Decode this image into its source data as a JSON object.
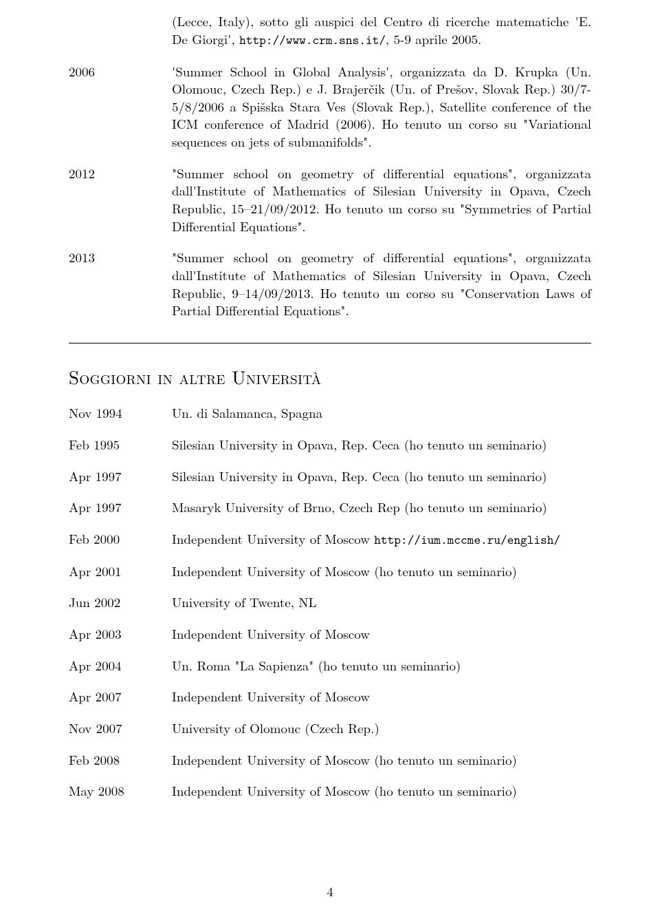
{
  "top": {
    "cont_text": "(Lecce, Italy), sotto gli auspici del Centro di ricerche matematiche 'E. De Giorgi', ",
    "cont_url": "http://www.crm.sns.it/",
    "cont_tail": ", 5-9 aprile 2005."
  },
  "schools": [
    {
      "year": "2006",
      "p1": "'Summer School in Global Analysis', organizzata da D. Krupka (Un. Olomouc, Czech Rep.) e J. Brajerčik (Un. of Prešov, Slovak Rep.) 30/7-5/8/2006 a Spišska Stara Ves (Slovak Rep.), Satellite conference of the ICM conference of Madrid (2006). Ho tenuto un corso su \"Variational sequences on jets of submanifolds\"."
    },
    {
      "year": "2012",
      "p1": "\"Summer school on geometry of differential equations\", organizzata dall'Institute of Mathematics of Silesian University in Opava, Czech Republic, 15–21/09/2012. Ho tenuto un corso su \"Symmetries of Partial Differential Equations\"."
    },
    {
      "year": "2013",
      "p1": "\"Summer school on geometry of differential equations\", organizzata dall'Institute of Mathematics of Silesian University in Opava, Czech Republic, 9–14/09/2013. Ho tenuto un corso su \"Conservation Laws of Partial Differential Equations\"."
    }
  ],
  "section_heading": "Soggiorni in altre Università",
  "visits": [
    {
      "date": "Nov 1994",
      "desc": "Un. di Salamanca, Spagna"
    },
    {
      "date": "Feb 1995",
      "desc": "Silesian University in Opava, Rep. Ceca (ho tenuto un seminario)"
    },
    {
      "date": "Apr 1997",
      "desc": "Silesian University in Opava, Rep. Ceca (ho tenuto un seminario)"
    },
    {
      "date": "Apr 1997",
      "desc": "Masaryk University of Brno, Czech Rep (ho tenuto un seminario)"
    },
    {
      "date": "Feb 2000",
      "desc_pre": "Independent University of Moscow ",
      "url": "http://ium.mccme.ru/english/"
    },
    {
      "date": "Apr 2001",
      "desc": "Independent University of Moscow (ho tenuto un seminario)"
    },
    {
      "date": "Jun 2002",
      "desc": "University of Twente, NL"
    },
    {
      "date": "Apr 2003",
      "desc": "Independent University of Moscow"
    },
    {
      "date": "Apr 2004",
      "desc": "Un. Roma \"La Sapienza\" (ho tenuto un seminario)"
    },
    {
      "date": "Apr 2007",
      "desc": "Independent University of Moscow"
    },
    {
      "date": "Nov 2007",
      "desc": "University of Olomouc (Czech Rep.)"
    },
    {
      "date": "Feb 2008",
      "desc": "Independent University of Moscow (ho tenuto un seminario)"
    },
    {
      "date": "May 2008",
      "desc": "Independent University of Moscow (ho tenuto un seminario)"
    }
  ],
  "page_number": "4"
}
